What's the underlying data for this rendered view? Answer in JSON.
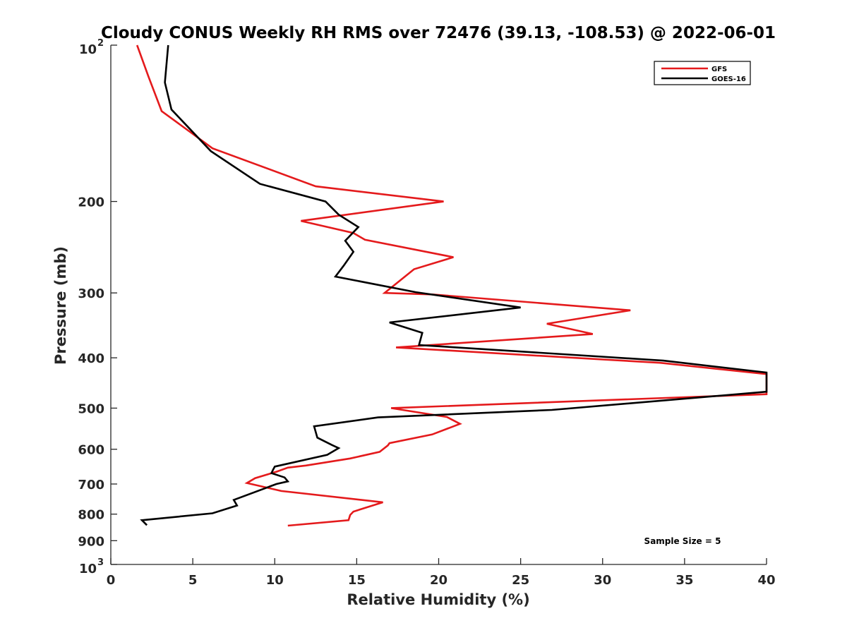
{
  "chart_data": {
    "type": "line",
    "title": "Cloudy CONUS Weekly RH RMS over 72476 (39.13, -108.53) @ 2022-06-01",
    "xlabel": "Relative Humidity (%)",
    "ylabel": "Pressure (mb)",
    "xlim": [
      0,
      40
    ],
    "ylim": [
      100,
      1000
    ],
    "y_scale": "log",
    "y_reversed": true,
    "x_ticks": [
      {
        "value": 0,
        "label": "0"
      },
      {
        "value": 5,
        "label": "5"
      },
      {
        "value": 10,
        "label": "10"
      },
      {
        "value": 15,
        "label": "15"
      },
      {
        "value": 20,
        "label": "20"
      },
      {
        "value": 25,
        "label": "25"
      },
      {
        "value": 30,
        "label": "30"
      },
      {
        "value": 35,
        "label": "35"
      },
      {
        "value": 40,
        "label": "40"
      }
    ],
    "y_ticks": [
      {
        "value": 100,
        "label": "10",
        "sup": "2"
      },
      {
        "value": 200,
        "label": "200",
        "sup": ""
      },
      {
        "value": 300,
        "label": "300",
        "sup": ""
      },
      {
        "value": 400,
        "label": "400",
        "sup": ""
      },
      {
        "value": 500,
        "label": "500",
        "sup": ""
      },
      {
        "value": 600,
        "label": "600",
        "sup": ""
      },
      {
        "value": 700,
        "label": "700",
        "sup": ""
      },
      {
        "value": 800,
        "label": "800",
        "sup": ""
      },
      {
        "value": 900,
        "label": "900",
        "sup": ""
      },
      {
        "value": 1000,
        "label": "10",
        "sup": "3"
      }
    ],
    "grid": false,
    "legend_position": "top-right",
    "annotation": "Sample Size = 5",
    "series": [
      {
        "name": "GFS",
        "color": "#e41a1c",
        "points": [
          [
            1.6,
            100
          ],
          [
            2.3,
            115
          ],
          [
            3.1,
            134
          ],
          [
            6.2,
            158
          ],
          [
            12.5,
            187
          ],
          [
            20.3,
            200
          ],
          [
            11.6,
            218
          ],
          [
            14.8,
            230
          ],
          [
            15.5,
            237
          ],
          [
            20.9,
            256
          ],
          [
            18.5,
            270
          ],
          [
            16.7,
            300
          ],
          [
            19.6,
            302
          ],
          [
            31.7,
            324
          ],
          [
            26.6,
            344
          ],
          [
            29.4,
            360
          ],
          [
            17.4,
            382
          ],
          [
            33.5,
            409
          ],
          [
            40,
            430
          ],
          [
            40,
            470
          ],
          [
            17.1,
            500
          ],
          [
            20.5,
            520
          ],
          [
            21.3,
            536
          ],
          [
            19.6,
            562
          ],
          [
            17.0,
            584
          ],
          [
            16.9,
            590
          ],
          [
            16.4,
            607
          ],
          [
            14.6,
            625
          ],
          [
            11.9,
            645
          ],
          [
            10.8,
            651
          ],
          [
            10.1,
            663
          ],
          [
            8.8,
            682
          ],
          [
            8.3,
            697
          ],
          [
            9.5,
            711
          ],
          [
            10.4,
            722
          ],
          [
            16.6,
            759
          ],
          [
            14.8,
            791
          ],
          [
            14.6,
            803
          ],
          [
            14.5,
            822
          ],
          [
            10.8,
            842
          ]
        ]
      },
      {
        "name": "GOES-16",
        "color": "#000000",
        "points": [
          [
            3.5,
            100
          ],
          [
            3.3,
            118
          ],
          [
            3.7,
            133
          ],
          [
            6.1,
            160
          ],
          [
            9.1,
            185
          ],
          [
            13.1,
            200
          ],
          [
            13.9,
            212
          ],
          [
            15.1,
            224
          ],
          [
            14.3,
            238
          ],
          [
            14.8,
            250
          ],
          [
            14.2,
            266
          ],
          [
            13.7,
            279
          ],
          [
            18.6,
            299
          ],
          [
            25.0,
            320
          ],
          [
            17.0,
            342
          ],
          [
            19.0,
            358
          ],
          [
            18.8,
            378
          ],
          [
            33.7,
            405
          ],
          [
            40,
            427
          ],
          [
            40,
            465
          ],
          [
            26.9,
            504
          ],
          [
            16.3,
            521
          ],
          [
            12.4,
            542
          ],
          [
            12.6,
            570
          ],
          [
            13.5,
            589
          ],
          [
            13.9,
            597
          ],
          [
            13.2,
            615
          ],
          [
            10.0,
            648
          ],
          [
            9.9,
            657
          ],
          [
            9.8,
            667
          ],
          [
            10.6,
            680
          ],
          [
            10.8,
            692
          ],
          [
            10.1,
            700
          ],
          [
            7.5,
            751
          ],
          [
            7.7,
            770
          ],
          [
            6.2,
            797
          ],
          [
            1.9,
            822
          ],
          [
            2.2,
            840
          ]
        ]
      }
    ]
  }
}
